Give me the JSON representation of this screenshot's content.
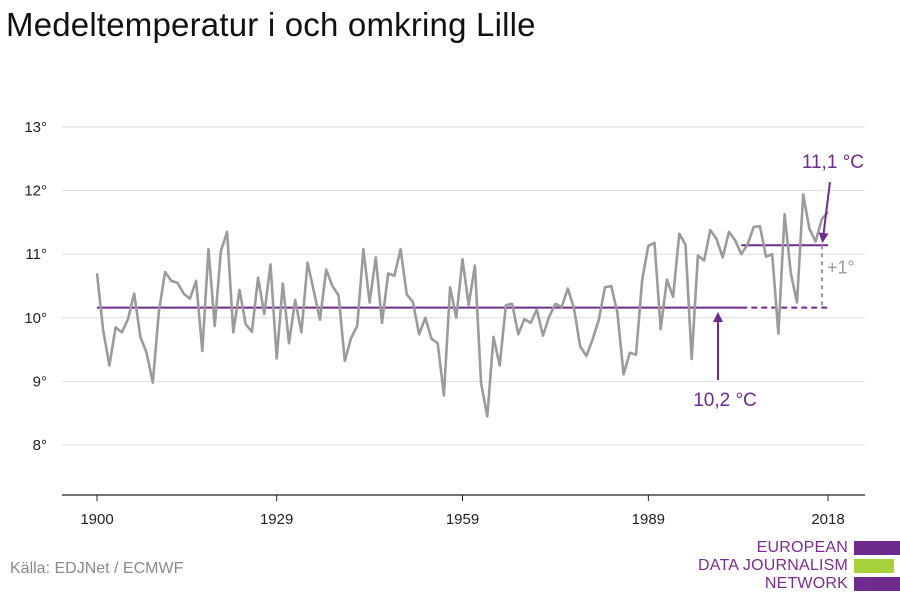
{
  "title": "Medeltemperatur i och omkring Lille",
  "source": "Källa: EDJNet / ECMWF",
  "logo": {
    "lines": [
      "EUROPEAN",
      "DATA JOURNALISM",
      "NETWORK"
    ],
    "colors": {
      "purple": "#6e2a8d",
      "green": "#a6d13b"
    }
  },
  "colors": {
    "series": "#9b9b9b",
    "baseline": "#6e2a8d",
    "recent": "#6e2a8d",
    "grid": "#dddddd",
    "annotation_purple": "#6e2a8d",
    "annotation_gray": "#9b9b9b"
  },
  "chart_data": {
    "type": "line",
    "title": "Medeltemperatur i och omkring Lille",
    "xlabel": "",
    "ylabel": "",
    "x_ticks": [
      1900,
      1929,
      1959,
      1989,
      2018
    ],
    "y_ticks": [
      {
        "value": 8,
        "label": "8°"
      },
      {
        "value": 9,
        "label": "9°"
      },
      {
        "value": 10,
        "label": "10°"
      },
      {
        "value": 11,
        "label": "11°"
      },
      {
        "value": 12,
        "label": "12°"
      },
      {
        "value": 13,
        "label": "13°"
      }
    ],
    "xlim": [
      1900,
      2018
    ],
    "ylim": [
      7.2,
      13.6
    ],
    "grid": true,
    "series": [
      {
        "x": [
          1900,
          1901,
          1902,
          1903,
          1904,
          1905,
          1906,
          1907,
          1908,
          1909,
          1910,
          1911,
          1912,
          1913,
          1914,
          1915,
          1916,
          1917,
          1918,
          1919,
          1920,
          1921,
          1922,
          1923,
          1924,
          1925,
          1926,
          1927,
          1928,
          1929,
          1930,
          1931,
          1932,
          1933,
          1934,
          1935,
          1936,
          1937,
          1938,
          1939,
          1940,
          1941,
          1942,
          1943,
          1944,
          1945,
          1946,
          1947,
          1948,
          1949,
          1950,
          1951,
          1952,
          1953,
          1954,
          1955,
          1956,
          1957,
          1958,
          1959,
          1960,
          1961,
          1962,
          1963,
          1964,
          1965,
          1966,
          1967,
          1968,
          1969,
          1970,
          1971,
          1972,
          1973,
          1974,
          1975,
          1976,
          1977,
          1978,
          1979,
          1980,
          1981,
          1982,
          1983,
          1984,
          1985,
          1986,
          1987,
          1988,
          1989,
          1990,
          1991,
          1992,
          1993,
          1994,
          1995,
          1996,
          1997,
          1998,
          1999,
          2000,
          2001,
          2002,
          2003,
          2004,
          2005,
          2006,
          2007,
          2008,
          2009,
          2010,
          2011,
          2012,
          2013,
          2014,
          2015,
          2016,
          2017,
          2018
        ],
        "values": [
          10.7,
          9.8,
          9.25,
          9.85,
          9.77,
          9.98,
          10.38,
          9.7,
          9.45,
          8.98,
          10.1,
          10.72,
          10.58,
          10.55,
          10.38,
          10.3,
          10.58,
          9.48,
          11.08,
          9.87,
          11.05,
          11.35,
          9.77,
          10.44,
          9.9,
          9.78,
          10.63,
          10.06,
          10.84,
          9.36,
          10.54,
          9.6,
          10.28,
          9.77,
          10.87,
          10.42,
          9.97,
          10.76,
          10.5,
          10.35,
          9.32,
          9.68,
          9.87,
          11.08,
          10.24,
          10.95,
          9.92,
          10.7,
          10.66,
          11.08,
          10.37,
          10.25,
          9.74,
          10.0,
          9.67,
          9.6,
          8.78,
          10.48,
          10.0,
          10.92,
          10.2,
          10.82,
          8.97,
          8.45,
          9.7,
          9.25,
          10.2,
          10.22,
          9.74,
          9.98,
          9.92,
          10.13,
          9.72,
          10.02,
          10.22,
          10.17,
          10.46,
          10.15,
          9.55,
          9.4,
          9.66,
          9.97,
          10.48,
          10.5,
          10.08,
          9.11,
          9.45,
          9.42,
          10.6,
          11.13,
          11.18,
          9.82,
          10.6,
          10.33,
          11.32,
          11.15,
          9.35,
          10.98,
          10.9,
          11.38,
          11.24,
          10.95,
          11.35,
          11.22,
          11.0,
          11.15,
          11.43,
          11.44,
          10.96,
          11.0,
          9.75,
          11.63,
          10.7,
          10.24,
          11.94,
          11.4,
          11.2,
          11.55,
          11.67
        ]
      }
    ],
    "reference_lines": [
      {
        "label": "10,2 °C",
        "value": 10.16,
        "from": 1900,
        "to": 2004,
        "dashed_to": 2018
      },
      {
        "label": "11,1 °C",
        "value": 11.14,
        "from": 2004,
        "to": 2018
      }
    ],
    "difference_label": "+1°"
  }
}
